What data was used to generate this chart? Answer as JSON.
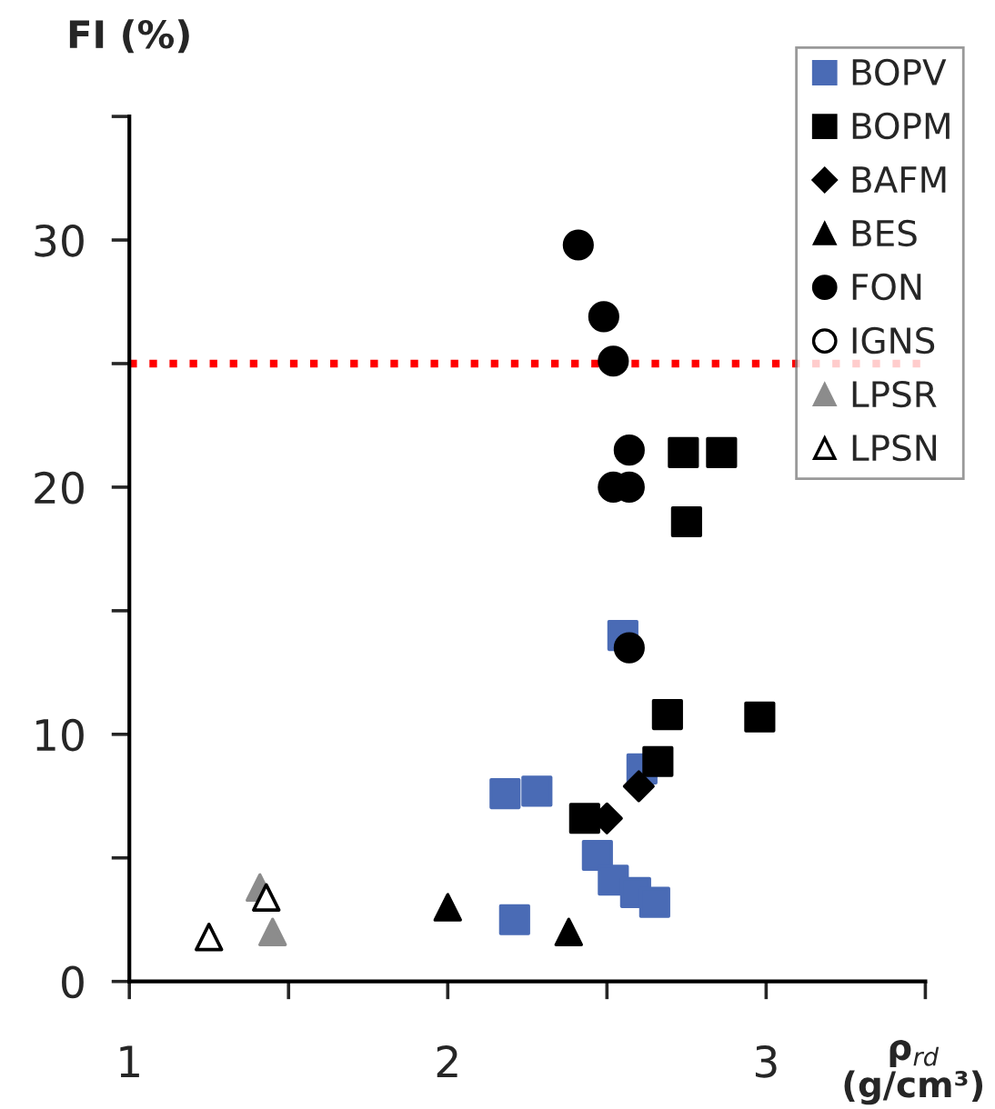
{
  "chart_data": {
    "type": "scatter",
    "ylabel": "FI (%)",
    "xlabel": "ρ$_{rd}$\n(g/cm³)",
    "xlim": [
      1,
      3.5
    ],
    "xticks": [
      1,
      {
        "value": 1.5,
        "label": null
      },
      2,
      {
        "value": 2.5,
        "label": null
      },
      3,
      {
        "value": 3.5,
        "label": null
      }
    ],
    "ylim": [
      0,
      35
    ],
    "yticks": [
      0,
      {
        "value": 5,
        "label": null
      },
      10,
      {
        "value": 15,
        "label": null
      },
      20,
      {
        "value": 25,
        "label": null
      },
      30,
      {
        "value": 35,
        "label": null
      }
    ],
    "grid": false,
    "legend": "top right",
    "ref_lines": [
      {
        "axis": "y",
        "value": 25,
        "color": "#ff0000",
        "line_style": "dotted"
      }
    ],
    "series": [
      {
        "name": "BOPV",
        "color": "#4a6bb5",
        "marker": "square",
        "x": [
          2.55,
          2.61,
          2.18,
          2.28,
          2.47,
          2.52,
          2.59,
          2.65,
          2.21
        ],
        "values": [
          14.0,
          8.6,
          7.6,
          7.7,
          5.1,
          4.1,
          3.6,
          3.2,
          2.5
        ]
      },
      {
        "name": "BOPM",
        "color": "#000000",
        "marker": "square",
        "x": [
          2.74,
          2.86,
          2.75,
          2.69,
          2.98,
          2.66,
          2.43
        ],
        "values": [
          21.4,
          21.4,
          18.6,
          10.8,
          10.7,
          8.9,
          6.6
        ]
      },
      {
        "name": "BAFM",
        "color": "#000000",
        "marker": "diamond",
        "x": [
          2.5,
          2.6
        ],
        "values": [
          6.6,
          7.9
        ]
      },
      {
        "name": "BES",
        "color": "#000000",
        "marker": "triangle",
        "x": [
          2.0,
          2.38
        ],
        "values": [
          3.0,
          2.0
        ]
      },
      {
        "name": "FON",
        "color": "#000000",
        "marker": "circle",
        "x": [
          2.41,
          2.49,
          2.52,
          2.57,
          2.52,
          2.57,
          2.57
        ],
        "values": [
          29.8,
          26.9,
          25.1,
          21.5,
          20.0,
          20.0,
          13.5
        ]
      },
      {
        "name": "IGNS",
        "color": "#ffffff",
        "marker": "circle"
      },
      {
        "name": "LPSR",
        "color": "#8c8c8c",
        "marker": "triangle",
        "x": [
          1.41,
          1.45
        ],
        "values": [
          3.8,
          2.0
        ]
      },
      {
        "name": "LPSN",
        "color": "#ffffff",
        "marker": "triangle",
        "x": [
          1.25,
          1.43
        ],
        "values": [
          1.8,
          3.4
        ]
      }
    ]
  }
}
